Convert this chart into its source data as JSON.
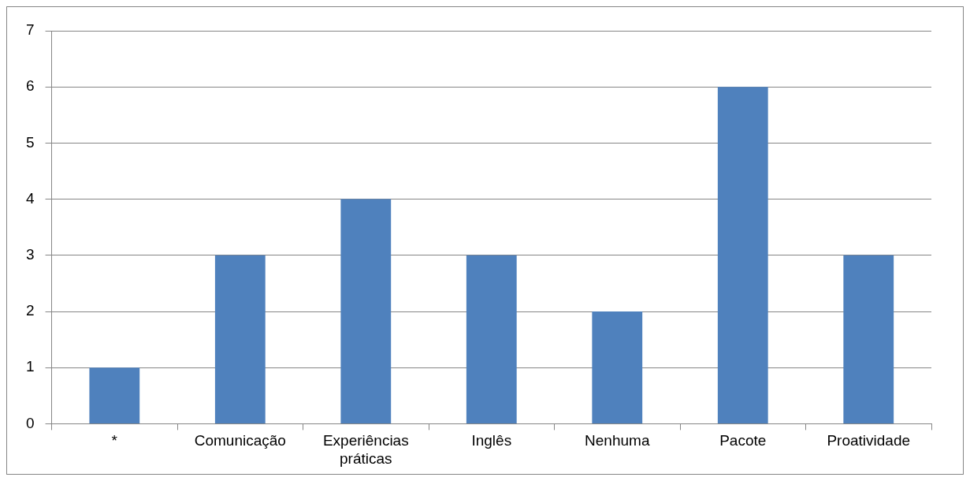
{
  "chart_data": {
    "type": "bar",
    "categories": [
      "*",
      "Comunicação",
      "Experiências práticas",
      "Inglês",
      "Nenhuma",
      "Pacote",
      "Proatividade"
    ],
    "values": [
      1,
      3,
      4,
      3,
      2,
      6,
      3
    ],
    "color": "#4f81bd",
    "ylim": [
      0,
      7
    ],
    "yticks": [
      0,
      1,
      2,
      3,
      4,
      5,
      6,
      7
    ],
    "grid": "y",
    "legend": false
  }
}
